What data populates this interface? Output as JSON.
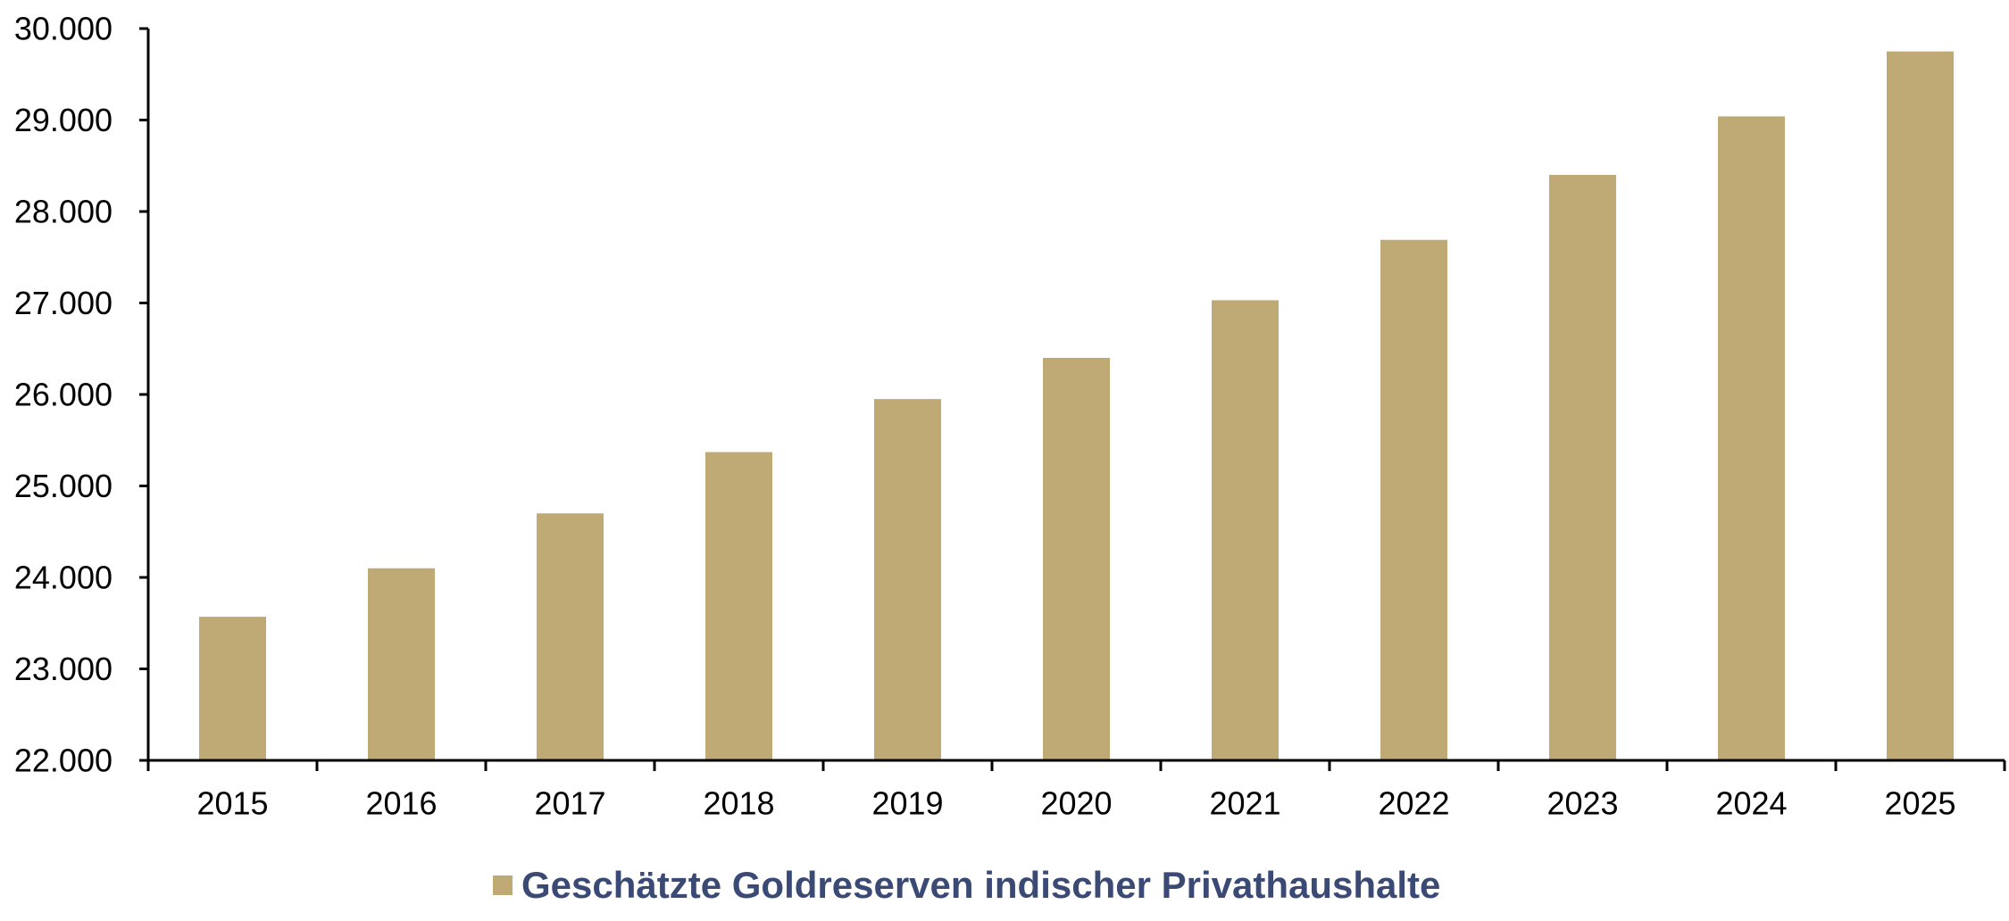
{
  "chart_data": {
    "type": "bar",
    "categories": [
      "2015",
      "2016",
      "2017",
      "2018",
      "2019",
      "2020",
      "2021",
      "2022",
      "2023",
      "2024",
      "2025"
    ],
    "series": [
      {
        "name": "Geschätzte Goldreserven indischer Privathaushalte",
        "values": [
          23570,
          24100,
          24700,
          25370,
          25950,
          26400,
          27030,
          27690,
          28400,
          29040,
          29750
        ]
      }
    ],
    "title": "",
    "xlabel": "",
    "ylabel": "",
    "ylim": [
      22000,
      30000
    ],
    "yticks": [
      22000,
      23000,
      24000,
      25000,
      26000,
      27000,
      28000,
      29000,
      30000
    ],
    "ytick_labels": [
      "22.000",
      "23.000",
      "24.000",
      "25.000",
      "26.000",
      "27.000",
      "28.000",
      "29.000",
      "30.000"
    ],
    "grid": false,
    "legend_position": "bottom-center"
  },
  "colors": {
    "bar": "#BFAA75",
    "axis": "#000000",
    "tick_text": "#000000",
    "legend_text": "#3A4A74"
  }
}
